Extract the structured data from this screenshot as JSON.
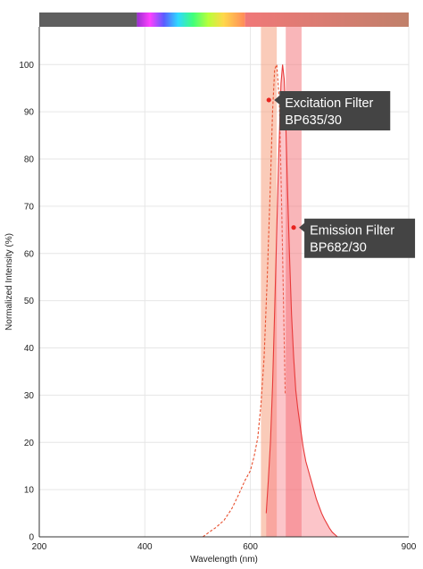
{
  "chart_data": {
    "type": "line",
    "xlabel": "Wavelength (nm)",
    "ylabel": "Normalized Intensity (%)",
    "xlim": [
      200,
      900
    ],
    "ylim": [
      0,
      108
    ],
    "x_ticks": [
      200,
      400,
      600,
      900
    ],
    "y_ticks": [
      0,
      10,
      20,
      30,
      40,
      50,
      60,
      70,
      80,
      90,
      100
    ],
    "grid": true,
    "spectrum_bar": {
      "gray_until": 385,
      "gradient_from": 385,
      "gradient_to": 590,
      "tail_color_start": "#f07878",
      "tail_color_end": "#c0806a"
    },
    "filters": [
      {
        "name": "Excitation Filter",
        "label": "BP635/30",
        "center": 635,
        "bandwidth": 30,
        "band_color": "#f5a080",
        "band_opacity": 0.55,
        "marker_y": 92.5
      },
      {
        "name": "Emission Filter",
        "label": "BP682/30",
        "center": 682,
        "bandwidth": 30,
        "band_color": "#f47a80",
        "band_opacity": 0.55,
        "marker_y": 65.5
      }
    ],
    "series": [
      {
        "kind": "excitation",
        "color": "#e8502f",
        "dash": true,
        "x": [
          510,
          522,
          535,
          550,
          565,
          578,
          590,
          600,
          607,
          614,
          620,
          626,
          632,
          638,
          642,
          646,
          650,
          655,
          660,
          666
        ],
        "y": [
          0,
          1,
          2,
          3.5,
          6,
          9,
          12,
          14,
          17,
          21,
          28,
          38,
          55,
          75,
          90,
          99,
          100,
          92,
          66,
          30
        ]
      },
      {
        "kind": "emission",
        "color": "#e83a3a",
        "fill_color": "#f76d78",
        "fill_opacity": 0.4,
        "x": [
          630,
          634,
          638,
          642,
          646,
          650,
          654,
          658,
          661,
          664,
          667,
          670,
          674,
          678,
          682,
          686,
          690,
          695,
          700,
          705,
          710,
          715,
          720,
          725,
          730,
          735,
          740,
          745,
          750,
          755,
          760,
          765
        ],
        "y": [
          5,
          12,
          20,
          32,
          48,
          65,
          82,
          96,
          100,
          97,
          88,
          75,
          60,
          47,
          38,
          31,
          27,
          23,
          19,
          16,
          14,
          12,
          10,
          8,
          6.5,
          5,
          3.8,
          2.8,
          1.8,
          1.0,
          0.5,
          0
        ]
      }
    ]
  }
}
